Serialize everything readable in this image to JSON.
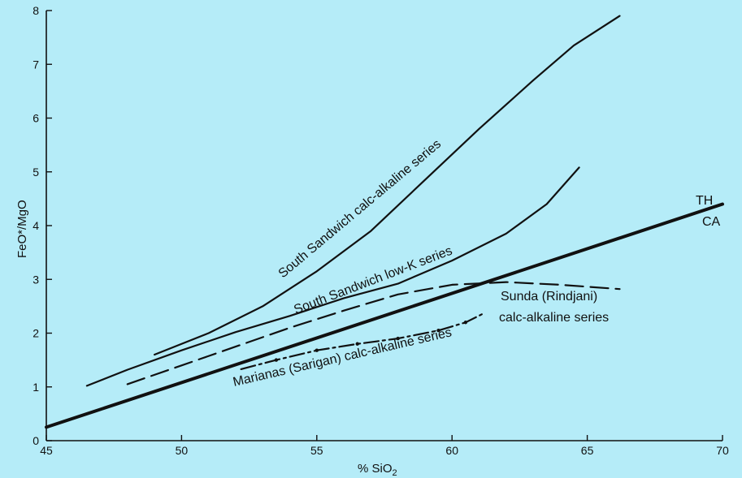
{
  "colors": {
    "background": "#b5ecf8",
    "ink": "#111111"
  },
  "chart_data": {
    "type": "line",
    "xlabel": "% SiO",
    "xlabel_sub": "2",
    "ylabel": "FeO*/MgO",
    "xlim": [
      45,
      70
    ],
    "ylim": [
      0,
      8
    ],
    "xticks": [
      45,
      50,
      55,
      60,
      65,
      70
    ],
    "yticks": [
      0,
      1,
      2,
      3,
      4,
      5,
      6,
      7,
      8
    ],
    "grid": false,
    "legend": "none",
    "divider_labels": {
      "upper": "TH",
      "lower": "CA"
    },
    "series": [
      {
        "name": "South Sandwich calc-alkaline series",
        "style": "solid",
        "points": [
          [
            49,
            1.6
          ],
          [
            51,
            2.0
          ],
          [
            53,
            2.5
          ],
          [
            55,
            3.15
          ],
          [
            57,
            3.9
          ],
          [
            59,
            4.85
          ],
          [
            61,
            5.8
          ],
          [
            63,
            6.7
          ],
          [
            64.5,
            7.35
          ],
          [
            66.2,
            7.9
          ]
        ]
      },
      {
        "name": "South Sandwich low-K series",
        "style": "solid",
        "points": [
          [
            46.5,
            1.02
          ],
          [
            48,
            1.32
          ],
          [
            50,
            1.68
          ],
          [
            52,
            2.02
          ],
          [
            54,
            2.32
          ],
          [
            56,
            2.65
          ],
          [
            58,
            2.92
          ],
          [
            60,
            3.35
          ],
          [
            62,
            3.85
          ],
          [
            63.5,
            4.4
          ],
          [
            64.7,
            5.08
          ]
        ]
      },
      {
        "name": "Sunda (Rindjani) calc-alkaline series",
        "style": "dashed",
        "points": [
          [
            48,
            1.05
          ],
          [
            50,
            1.4
          ],
          [
            52,
            1.75
          ],
          [
            54,
            2.1
          ],
          [
            56,
            2.42
          ],
          [
            58,
            2.72
          ],
          [
            60,
            2.9
          ],
          [
            62,
            2.95
          ],
          [
            64,
            2.9
          ],
          [
            66.2,
            2.82
          ]
        ]
      },
      {
        "name": "Marianas (Sarigan) calc-alkaline series",
        "style": "dashdot",
        "points": [
          [
            52.2,
            1.33
          ],
          [
            53.5,
            1.5
          ],
          [
            55,
            1.68
          ],
          [
            56.5,
            1.8
          ],
          [
            58,
            1.9
          ],
          [
            59.5,
            2.05
          ],
          [
            60.5,
            2.2
          ],
          [
            61.1,
            2.35
          ]
        ]
      },
      {
        "name": "TH/CA divide",
        "style": "thick",
        "points": [
          [
            45,
            0.25
          ],
          [
            70,
            4.4
          ]
        ]
      }
    ]
  }
}
